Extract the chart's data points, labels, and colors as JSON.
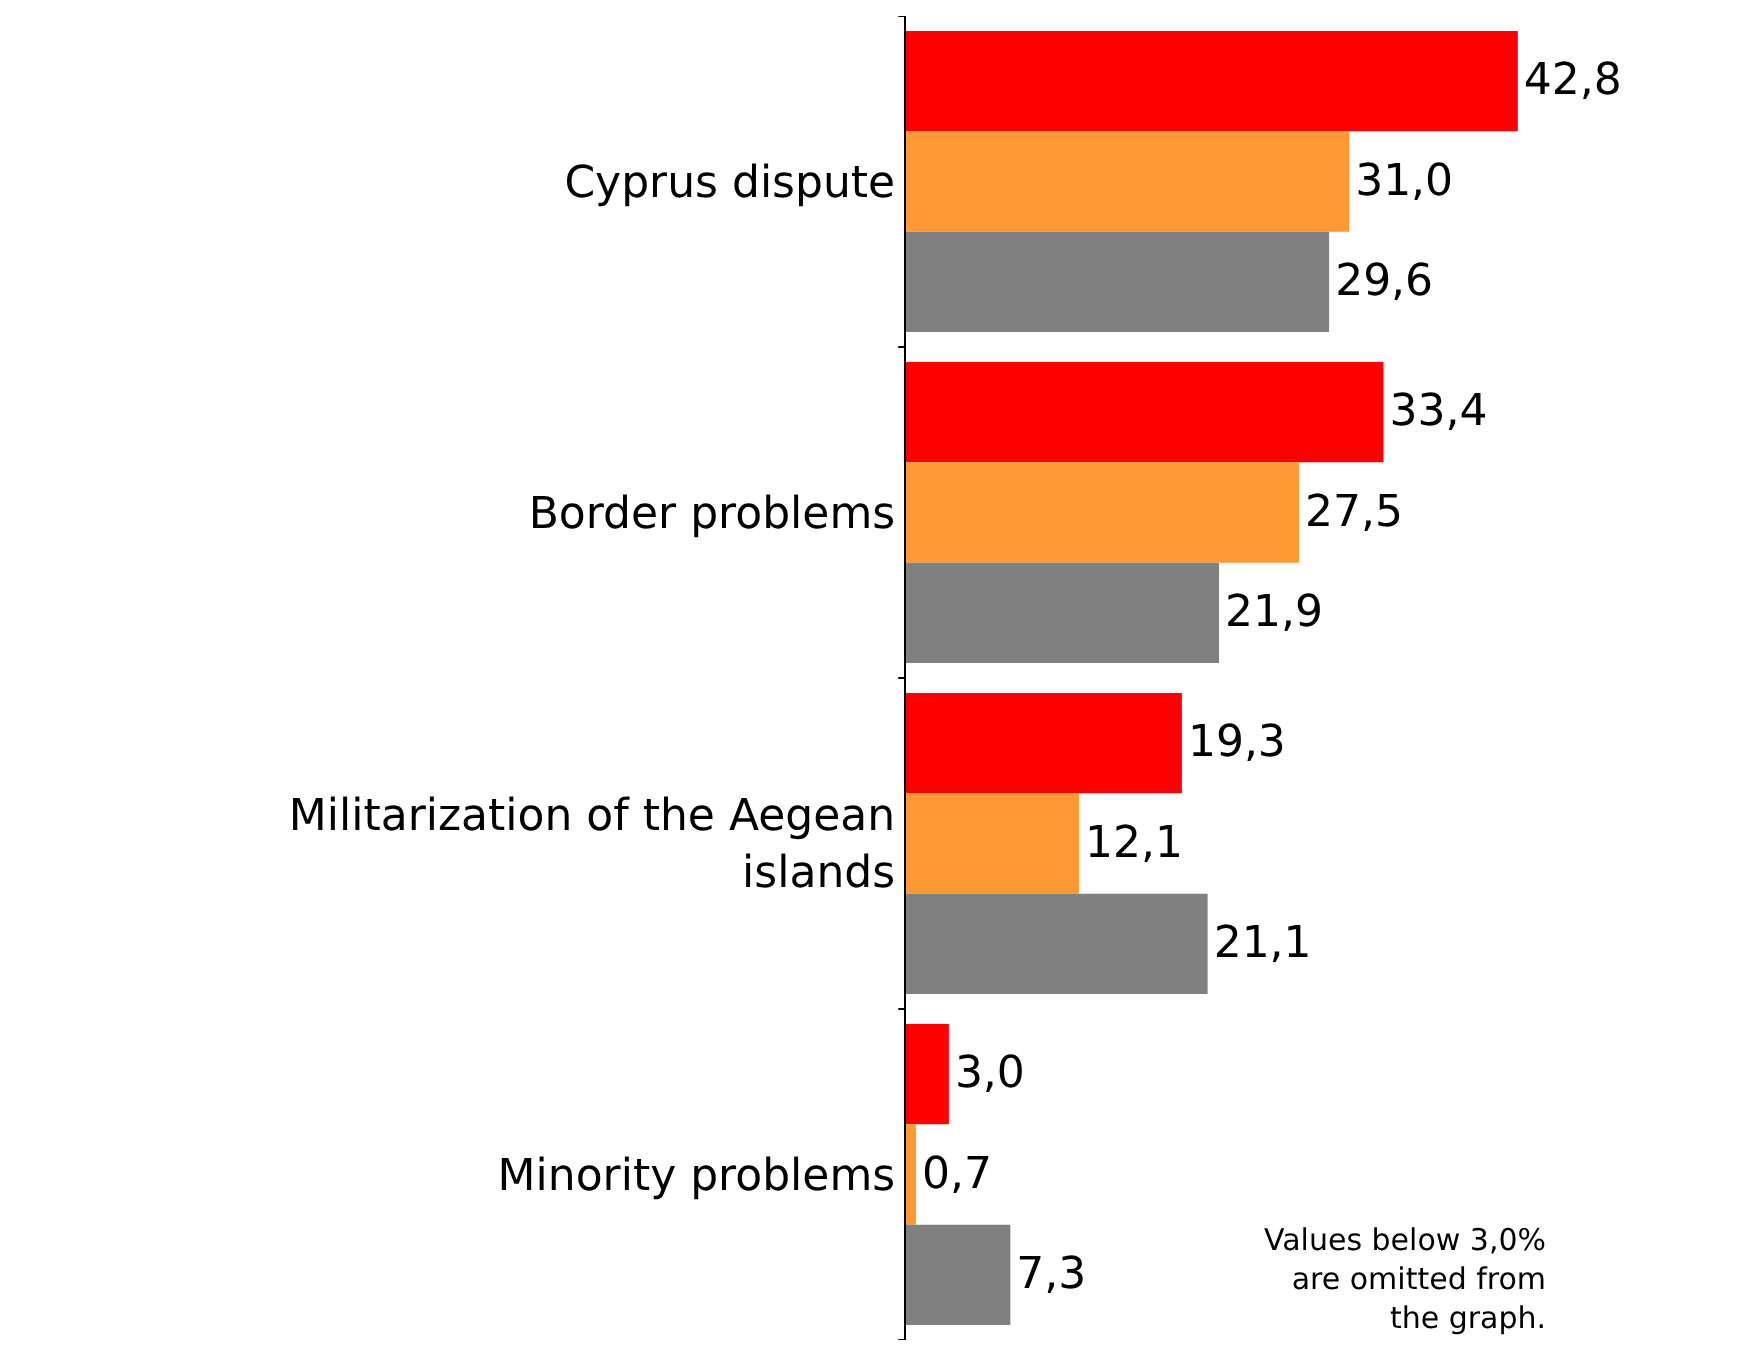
{
  "chart_data": {
    "type": "bar",
    "orientation": "horizontal",
    "categories": [
      "Cyprus dispute",
      "Border problems",
      "Militarization of the Aegean islands",
      "Minority problems"
    ],
    "series": [
      {
        "color": "#ff0000",
        "values": [
          42.8,
          33.4,
          19.3,
          3.0
        ],
        "value_labels": [
          "42,8",
          "33,4",
          "19,3",
          "3,0"
        ]
      },
      {
        "color": "#ff9933",
        "values": [
          31.0,
          27.5,
          12.1,
          0.7
        ],
        "value_labels": [
          "31,0",
          "27,5",
          "12,1",
          "0,7"
        ]
      },
      {
        "color": "#808080",
        "values": [
          29.6,
          21.9,
          21.1,
          7.3
        ],
        "value_labels": [
          "29,6",
          "21,9",
          "21,1",
          "7,3"
        ]
      }
    ],
    "tick_labels": "y",
    "legend": false,
    "annotations": [
      "Values below 3,0%\nare omitted from\nthe graph."
    ]
  }
}
